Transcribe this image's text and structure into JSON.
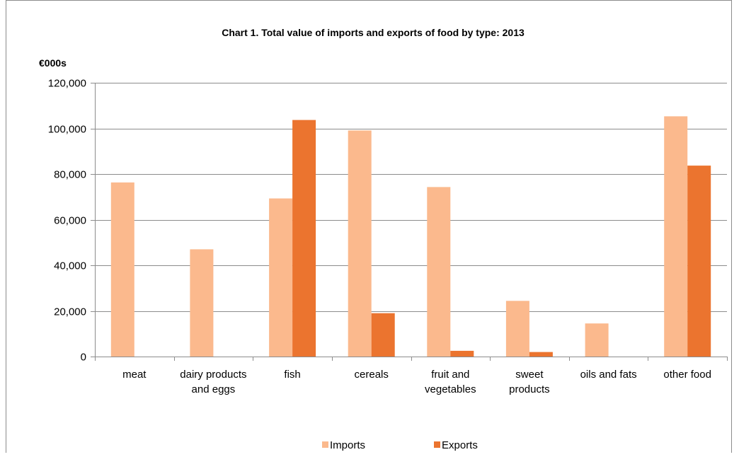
{
  "chart_data": {
    "type": "bar",
    "title": "Chart 1.  Total value of imports and exports of food by type: 2013",
    "ylabel": "€000s",
    "xlabel": "",
    "ylim": [
      0,
      120000
    ],
    "yticks": [
      0,
      20000,
      40000,
      60000,
      80000,
      100000,
      120000
    ],
    "ytick_labels": [
      "0",
      "20,000",
      "40,000",
      "60,000",
      "80,000",
      "100,000",
      "120,000"
    ],
    "grid": true,
    "legend_position": "bottom",
    "categories": [
      [
        "meat"
      ],
      [
        "dairy products",
        "and eggs"
      ],
      [
        "fish"
      ],
      [
        "cereals"
      ],
      [
        "fruit and",
        "vegetables"
      ],
      [
        "sweet",
        "products"
      ],
      [
        "oils and fats"
      ],
      [
        "other food"
      ]
    ],
    "series": [
      {
        "name": "Imports",
        "color": "#fbb98d",
        "values": [
          76300,
          47000,
          69300,
          99100,
          74300,
          24400,
          14500,
          105300
        ]
      },
      {
        "name": "Exports",
        "color": "#eb742f",
        "values": [
          0,
          0,
          103700,
          19000,
          2500,
          2000,
          0,
          83700
        ]
      }
    ]
  }
}
